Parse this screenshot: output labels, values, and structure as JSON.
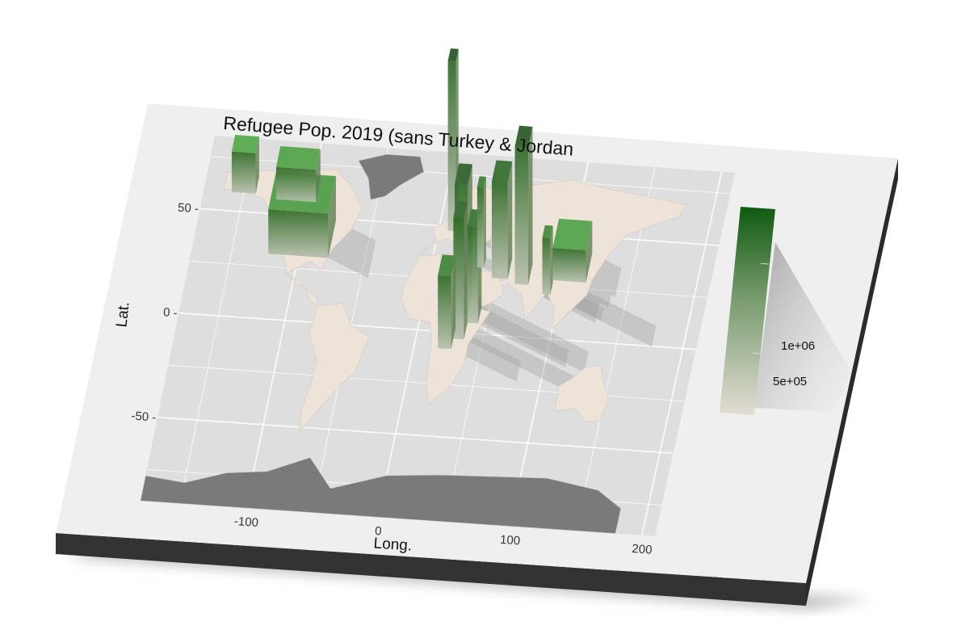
{
  "chart_data": {
    "type": "heatmap",
    "title": "Refugee Pop. 2019 (sans Turkey & Jordan",
    "xlabel": "Long.",
    "ylabel": "Lat.",
    "xlim": [
      -180,
      210
    ],
    "ylim": [
      -90,
      85
    ],
    "x_ticks": [
      -100,
      0,
      100,
      200
    ],
    "x_tick_labels": [
      "-100",
      "0",
      "100",
      "200"
    ],
    "y_ticks": [
      50,
      0,
      -50
    ],
    "y_tick_labels": [
      "50 -",
      "0 -",
      "-50 -"
    ],
    "grid": true,
    "legend": {
      "placement": "right",
      "breaks": [
        1000000,
        500000
      ],
      "labels": [
        "1e+06",
        "5e+05"
      ],
      "low_color": "#e6e1d9",
      "high_color": "#0f5a0f"
    },
    "colors": {
      "panel": "#dedede",
      "background": "#efefef",
      "low_value_land": "#ede3d8",
      "no_data_land": "#7a7a7a",
      "gridline": "#ffffff"
    }
  }
}
